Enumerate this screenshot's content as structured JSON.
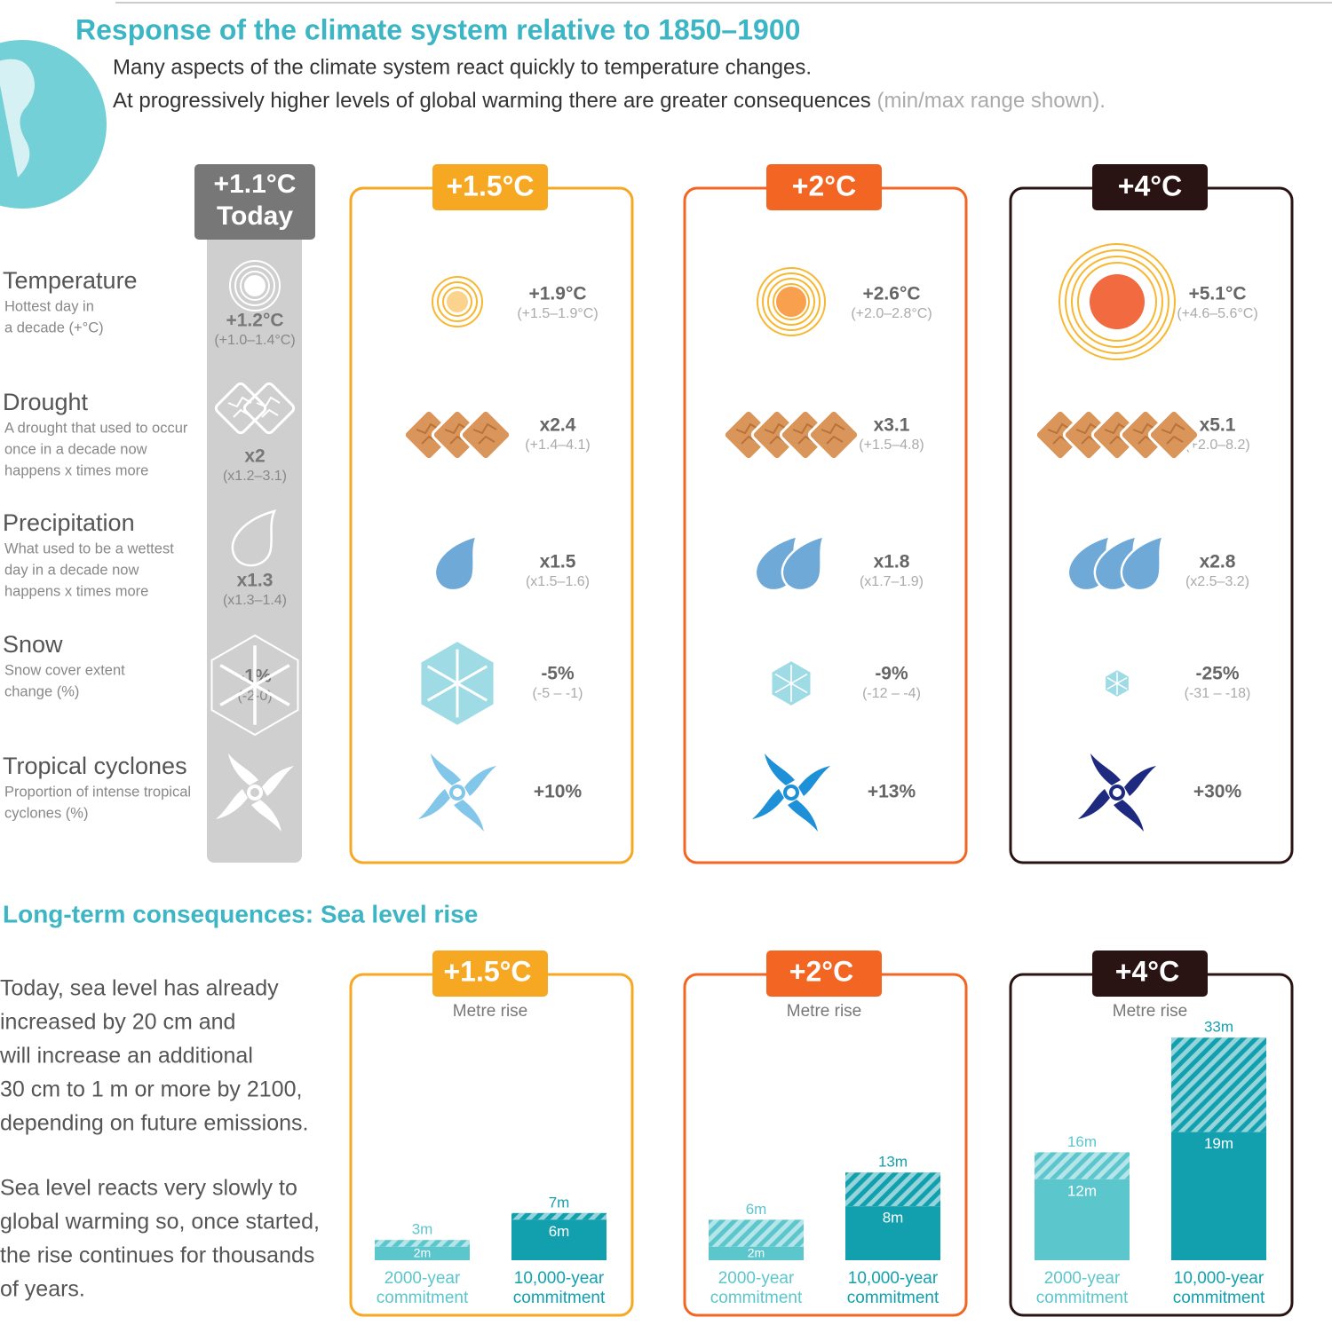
{
  "title": "Response of the climate system relative to 1850–1900",
  "subtitle": {
    "line1": "Many aspects of the climate system react quickly to temperature changes.",
    "line2": "At progressively higher levels of global warming there are greater consequences",
    "note": "(min/max range shown)."
  },
  "indicators": [
    {
      "name": "Temperature",
      "description": [
        "Hottest day in",
        "a decade (+°C)"
      ]
    },
    {
      "name": "Drought",
      "description": [
        "A drought that used to occur",
        "once in a decade now",
        "happens x times more"
      ]
    },
    {
      "name": "Precipitation",
      "description": [
        "What used to be a wettest",
        "day in a decade now",
        "happens x times more"
      ]
    },
    {
      "name": "Snow",
      "description": [
        "Snow cover extent",
        "change (%)"
      ]
    },
    {
      "name": "Tropical cyclones",
      "description": [
        "Proportion of intense tropical",
        "cyclones (%)"
      ]
    }
  ],
  "today": {
    "label": [
      "+1.1°C",
      "Today"
    ],
    "values": [
      {
        "value": "+1.2°C",
        "range": "(+1.0–1.4°C)"
      },
      {
        "value": "x2",
        "range": "(x1.2–3.1)"
      },
      {
        "value": "x1.3",
        "range": "(x1.3–1.4)"
      },
      {
        "value": "-1%",
        "range": "(-2-0)"
      }
    ]
  },
  "scenarios": [
    {
      "label": "+1.5°C",
      "color": "#f7a823",
      "values": [
        {
          "value": "+1.9°C",
          "range": "(+1.5–1.9°C)"
        },
        {
          "value": "x2.4",
          "range": "(+1.4–4.1)"
        },
        {
          "value": "x1.5",
          "range": "(x1.5–1.6)"
        },
        {
          "value": "-5%",
          "range": "(-5 – -1)"
        },
        {
          "value": "+10%"
        }
      ]
    },
    {
      "label": "+2°C",
      "color": "#f26522",
      "values": [
        {
          "value": "+2.6°C",
          "range": "(+2.0–2.8°C)"
        },
        {
          "value": "x3.1",
          "range": "(+1.5–4.8)"
        },
        {
          "value": "x1.8",
          "range": "(x1.7–1.9)"
        },
        {
          "value": "-9%",
          "range": "(-12 – -4)"
        },
        {
          "value": "+13%"
        }
      ]
    },
    {
      "label": "+4°C",
      "color": "#2a1313",
      "values": [
        {
          "value": "+5.1°C",
          "range": "(+4.6–5.6°C)"
        },
        {
          "value": "x5.1",
          "range": "(+2.0–8.2)"
        },
        {
          "value": "x2.8",
          "range": "(x2.5–3.2)"
        },
        {
          "value": "-25%",
          "range": "(-31 – -18)"
        },
        {
          "value": "+30%"
        }
      ]
    }
  ],
  "sea_level": {
    "title": "Long-term consequences: Sea level rise",
    "paragraphs": [
      [
        "Today, sea level has already",
        "increased by 20 cm and",
        "will increase an additional",
        "30 cm to 1 m or more by 2100,",
        "depending on future emissions."
      ],
      [
        "Sea level reacts very slowly to",
        "global warming so, once started,",
        "the rise continues for thousands",
        "of years."
      ]
    ],
    "unit_label": "Metre rise",
    "bar_captions": [
      [
        "2000-year",
        "commitment"
      ],
      [
        "10,000-year",
        "commitment"
      ]
    ],
    "bar_colors": [
      "#5cc6cd",
      "#12a0ae"
    ],
    "panels": [
      {
        "min": [
          2,
          6
        ],
        "max": [
          3,
          7
        ],
        "min_labels": [
          "2m",
          "6m"
        ],
        "max_labels": [
          "3m",
          "7m"
        ]
      },
      {
        "min": [
          2,
          8
        ],
        "max": [
          6,
          13
        ],
        "min_labels": [
          "2m",
          "8m"
        ],
        "max_labels": [
          "6m",
          "13m"
        ]
      },
      {
        "min": [
          12,
          19
        ],
        "max": [
          16,
          33
        ],
        "min_labels": [
          "12m",
          "19m"
        ],
        "max_labels": [
          "16m",
          "33m"
        ]
      }
    ]
  }
}
